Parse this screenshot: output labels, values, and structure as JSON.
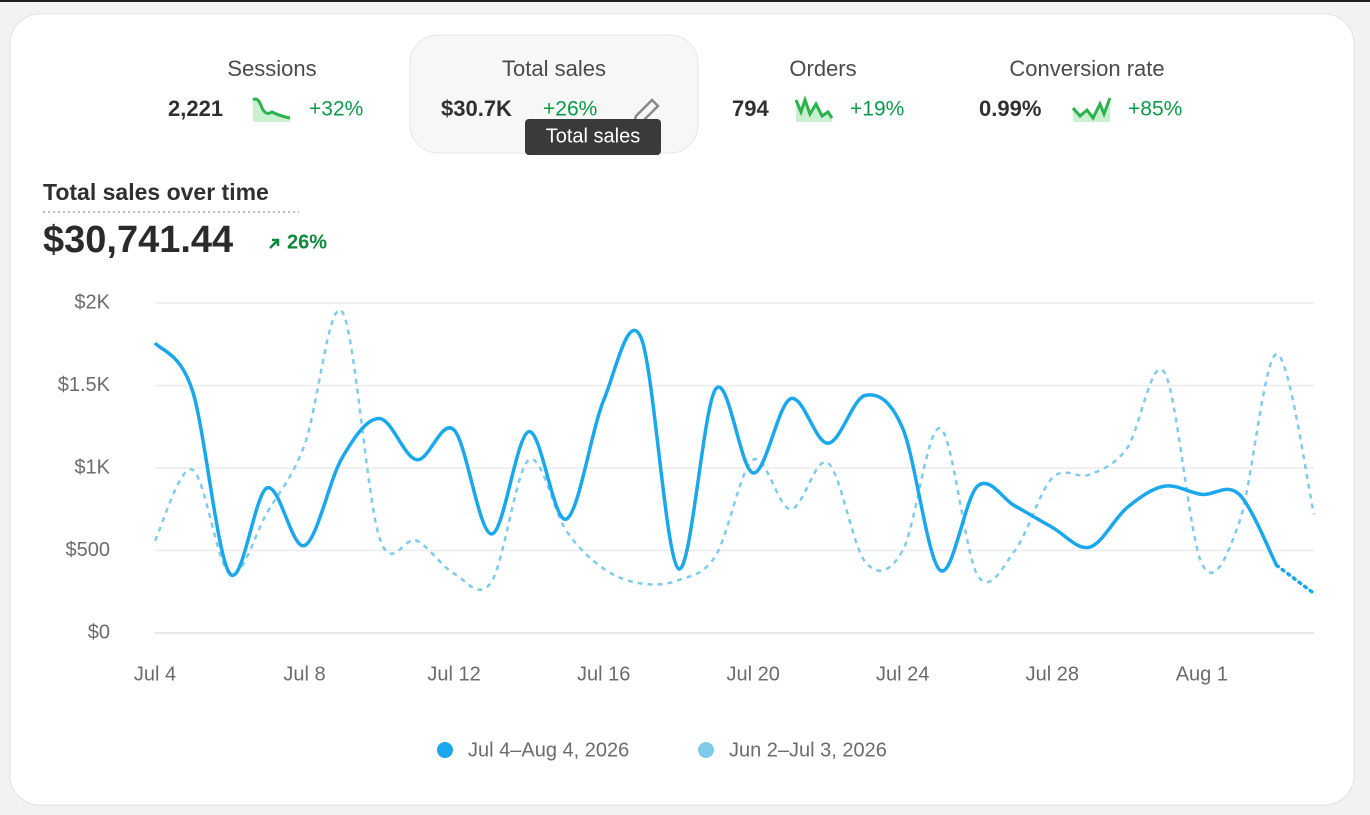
{
  "metrics": [
    {
      "label": "Sessions",
      "value": "2,221",
      "change": "+32%"
    },
    {
      "label": "Total sales",
      "value": "$30.7K",
      "change": "+26%"
    },
    {
      "label": "Orders",
      "value": "794",
      "change": "+19%"
    },
    {
      "label": "Conversion rate",
      "value": "0.99%",
      "change": "+85%"
    }
  ],
  "tooltip": "Total sales",
  "chart_data": {
    "type": "line",
    "title": "Total sales over time",
    "headline_value": "$30,741.44",
    "change": "26%",
    "categories": [
      "Jul 4",
      null,
      null,
      null,
      "Jul 8",
      null,
      null,
      null,
      "Jul 12",
      null,
      null,
      null,
      "Jul 16",
      null,
      null,
      null,
      "Jul 20",
      null,
      null,
      null,
      "Jul 24",
      null,
      null,
      null,
      "Jul 28",
      null,
      null,
      null,
      "Aug 1",
      null,
      null,
      null
    ],
    "series": [
      {
        "name": "Jul 4–Aug 4, 2026",
        "color": "#1aa7ec",
        "values": [
          1758,
          1470,
          360,
          880,
          530,
          1060,
          1300,
          1050,
          1230,
          600,
          1220,
          690,
          1410,
          1790,
          390,
          1480,
          970,
          1420,
          1150,
          1440,
          1240,
          380,
          890,
          770,
          640,
          520,
          760,
          890,
          840,
          840,
          410,
          240
        ]
      },
      {
        "name": "Jun 2–Jul 3, 2026",
        "color": "#7ecbea",
        "dashed": true,
        "values": [
          560,
          990,
          360,
          730,
          1140,
          1950,
          580,
          560,
          360,
          310,
          1050,
          620,
          390,
          300,
          320,
          470,
          1050,
          750,
          1030,
          430,
          500,
          1240,
          350,
          500,
          940,
          960,
          1120,
          1580,
          420,
          670,
          1690,
          720
        ]
      }
    ],
    "ylim": [
      0,
      2000
    ],
    "yticks": [
      {
        "value": 0,
        "label": "$0"
      },
      {
        "value": 500,
        "label": "$500"
      },
      {
        "value": 1000,
        "label": "$1K"
      },
      {
        "value": 1500,
        "label": "$1.5K"
      },
      {
        "value": 2000,
        "label": "$2K"
      }
    ],
    "grid": true,
    "legend": "bottom"
  }
}
